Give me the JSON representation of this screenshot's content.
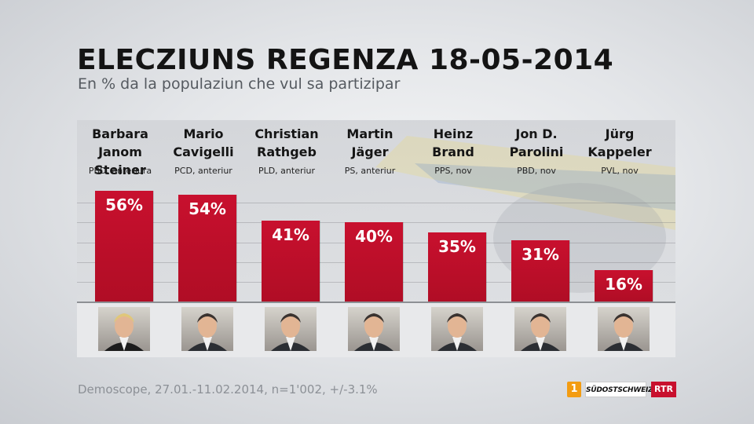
{
  "header": {
    "title": "ELECZIUNS REGENZA 18-05-2014",
    "subtitle": "En % da la populaziun che vul sa partizipar"
  },
  "chart_data": {
    "type": "bar",
    "title": "ELECZIUNS REGENZA 18-05-2014",
    "subtitle": "En % da la populaziun che vul sa partizipar",
    "categories": [
      "Barbara\nJanom Steiner",
      "Mario\nCavigelli",
      "Christian\nRathgeb",
      "Martin\nJäger",
      "Heinz\nBrand",
      "Jon D.\nParolini",
      "Jürg\nKappeler"
    ],
    "parties": [
      "PBD, anteriura",
      "PCD, anteriur",
      "PLD, anteriur",
      "PS, anteriur",
      "PPS, nov",
      "PBD, nov",
      "PVL, nov"
    ],
    "values": [
      56,
      54,
      41,
      40,
      35,
      31,
      16
    ],
    "value_labels": [
      "56%",
      "54%",
      "41%",
      "40%",
      "35%",
      "31%",
      "16%"
    ],
    "ylim": [
      0,
      60
    ],
    "grid": true,
    "bar_color": "#c8102e"
  },
  "footer": {
    "source": "Demoscope, 27.01.-11.02.2014, n=1'002, +/-3.1%",
    "logos": [
      "1",
      "SÜDOSTSCHWEIZ",
      "RTR"
    ]
  }
}
